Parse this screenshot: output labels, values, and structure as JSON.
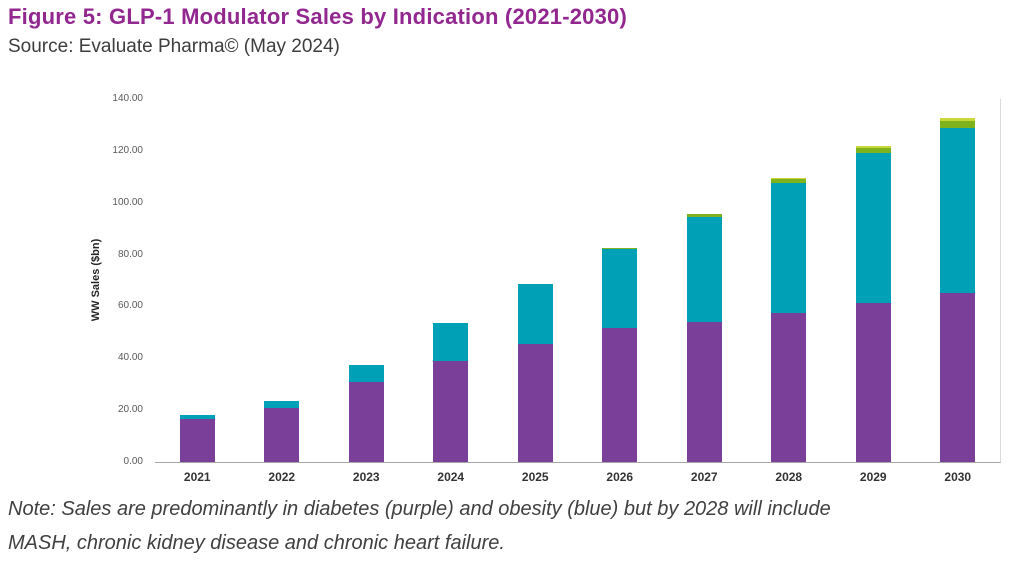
{
  "figure": {
    "title": "Figure 5: GLP-1 Modulator Sales by Indication (2021-2030)",
    "source": "Source: Evaluate Pharma© (May 2024)",
    "note_line1": "Note: Sales are predominantly in diabetes (purple) and obesity (blue) but by 2028 will include",
    "note_line2": "MASH, chronic kidney disease and chronic heart failure."
  },
  "colors": {
    "title_purple": "#92278F",
    "diabetes_purple": "#7A3F98",
    "obesity_teal": "#00A0B6",
    "mash_green": "#7FB31E",
    "other_lightgreen": "#C9D838"
  },
  "chart_data": {
    "type": "bar",
    "stacked": true,
    "title": "",
    "xlabel": "",
    "ylabel": "WW Sales ($bn)",
    "ylim": [
      0,
      140
    ],
    "grid": false,
    "legend": "none",
    "yticks": [
      {
        "value": 0,
        "label": "0.00"
      },
      {
        "value": 20,
        "label": "20.00"
      },
      {
        "value": 40,
        "label": "40.00"
      },
      {
        "value": 60,
        "label": "60.00"
      },
      {
        "value": 80,
        "label": "80.00"
      },
      {
        "value": 100,
        "label": "100.00"
      },
      {
        "value": 120,
        "label": "120.00"
      },
      {
        "value": 140,
        "label": "140.00"
      }
    ],
    "categories": [
      "2021",
      "2022",
      "2023",
      "2024",
      "2025",
      "2026",
      "2027",
      "2028",
      "2029",
      "2030"
    ],
    "series": [
      {
        "name": "diabetes",
        "color": "#7A3F98",
        "values": [
          16.5,
          21,
          31,
          39,
          45.5,
          51.5,
          54,
          57.5,
          61.5,
          65
        ]
      },
      {
        "name": "obesity",
        "color": "#00A0B6",
        "values": [
          1.5,
          2.5,
          6.5,
          14.5,
          23,
          30.5,
          40.5,
          50,
          57.5,
          64
        ]
      },
      {
        "name": "mash",
        "color": "#7FB31E",
        "values": [
          0,
          0,
          0,
          0,
          0,
          0.5,
          1,
          1.5,
          2,
          2.5
        ]
      },
      {
        "name": "chronic-kidney-disease-chf",
        "color": "#C9D838",
        "values": [
          0,
          0,
          0,
          0,
          0,
          0,
          0,
          0.5,
          0.7,
          1
        ]
      }
    ]
  }
}
